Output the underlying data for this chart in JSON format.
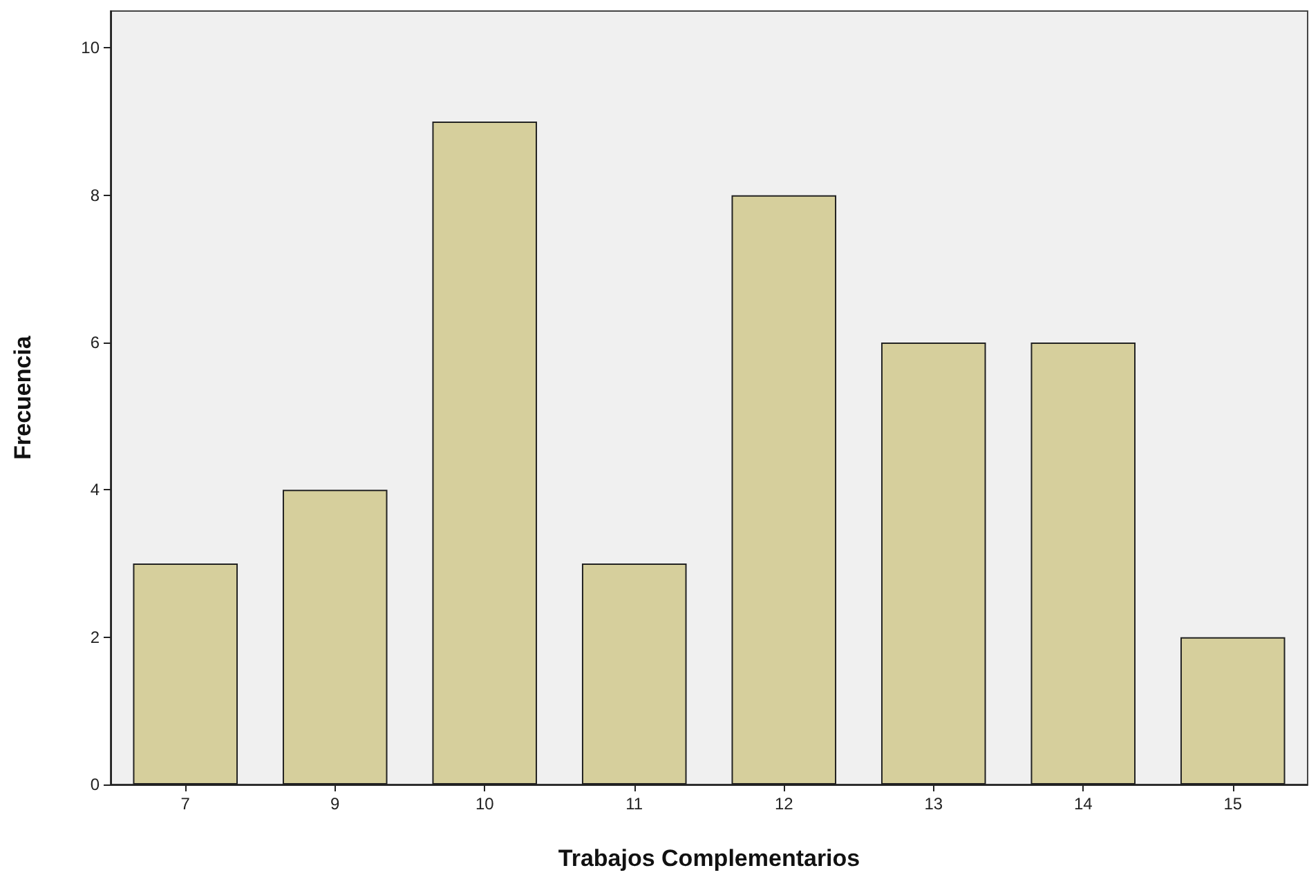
{
  "chart_data": {
    "type": "bar",
    "xlabel": "Trabajos Complementarios",
    "ylabel": "Frecuencia",
    "categories": [
      "7",
      "9",
      "10",
      "11",
      "12",
      "13",
      "14",
      "15"
    ],
    "values": [
      3,
      4,
      9,
      3,
      8,
      6,
      6,
      2
    ],
    "color": "#d6cf9c",
    "ylim": [
      0,
      10.5
    ],
    "yticks": [
      0,
      2,
      4,
      6,
      8,
      10
    ],
    "grid": false
  }
}
